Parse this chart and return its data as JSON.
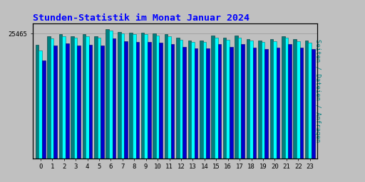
{
  "title": "Stunden-Statistik im Monat Januar 2024",
  "ylabel": "Seiten / Dateien / Anfragen",
  "xlabel_values": [
    0,
    1,
    2,
    3,
    4,
    5,
    6,
    7,
    8,
    9,
    10,
    11,
    12,
    13,
    14,
    15,
    16,
    17,
    18,
    19,
    20,
    21,
    22,
    23
  ],
  "seiten": [
    22000,
    24500,
    25000,
    24600,
    24900,
    24600,
    26100,
    25500,
    25400,
    25300,
    25100,
    25000,
    24200,
    23700,
    23700,
    24700,
    24200,
    24700,
    24000,
    23700,
    23900,
    24700,
    23900,
    23600
  ],
  "dateien": [
    23200,
    25000,
    25400,
    25000,
    25300,
    25000,
    26400,
    25800,
    25700,
    25600,
    25500,
    25300,
    24600,
    24100,
    24100,
    25100,
    24600,
    25100,
    24400,
    24100,
    24300,
    25000,
    24300,
    24000
  ],
  "anfragen": [
    20000,
    23000,
    23500,
    23000,
    23200,
    23000,
    24500,
    23900,
    23800,
    23700,
    23600,
    23400,
    22800,
    22400,
    22400,
    23300,
    22800,
    23300,
    22600,
    22300,
    22600,
    23300,
    22600,
    22300
  ],
  "color_seiten": "#00FFFF",
  "color_dateien": "#008080",
  "color_anfragen": "#0000CD",
  "background_plot": "#C0C0C0",
  "background_fig": "#C0C0C0",
  "title_color": "#0000FF",
  "ylabel_color": "#008080",
  "ylim_min": 0,
  "ylim_max": 27500,
  "ytick_value": 25465,
  "ytick_label": "25465",
  "bar_width": 0.28
}
